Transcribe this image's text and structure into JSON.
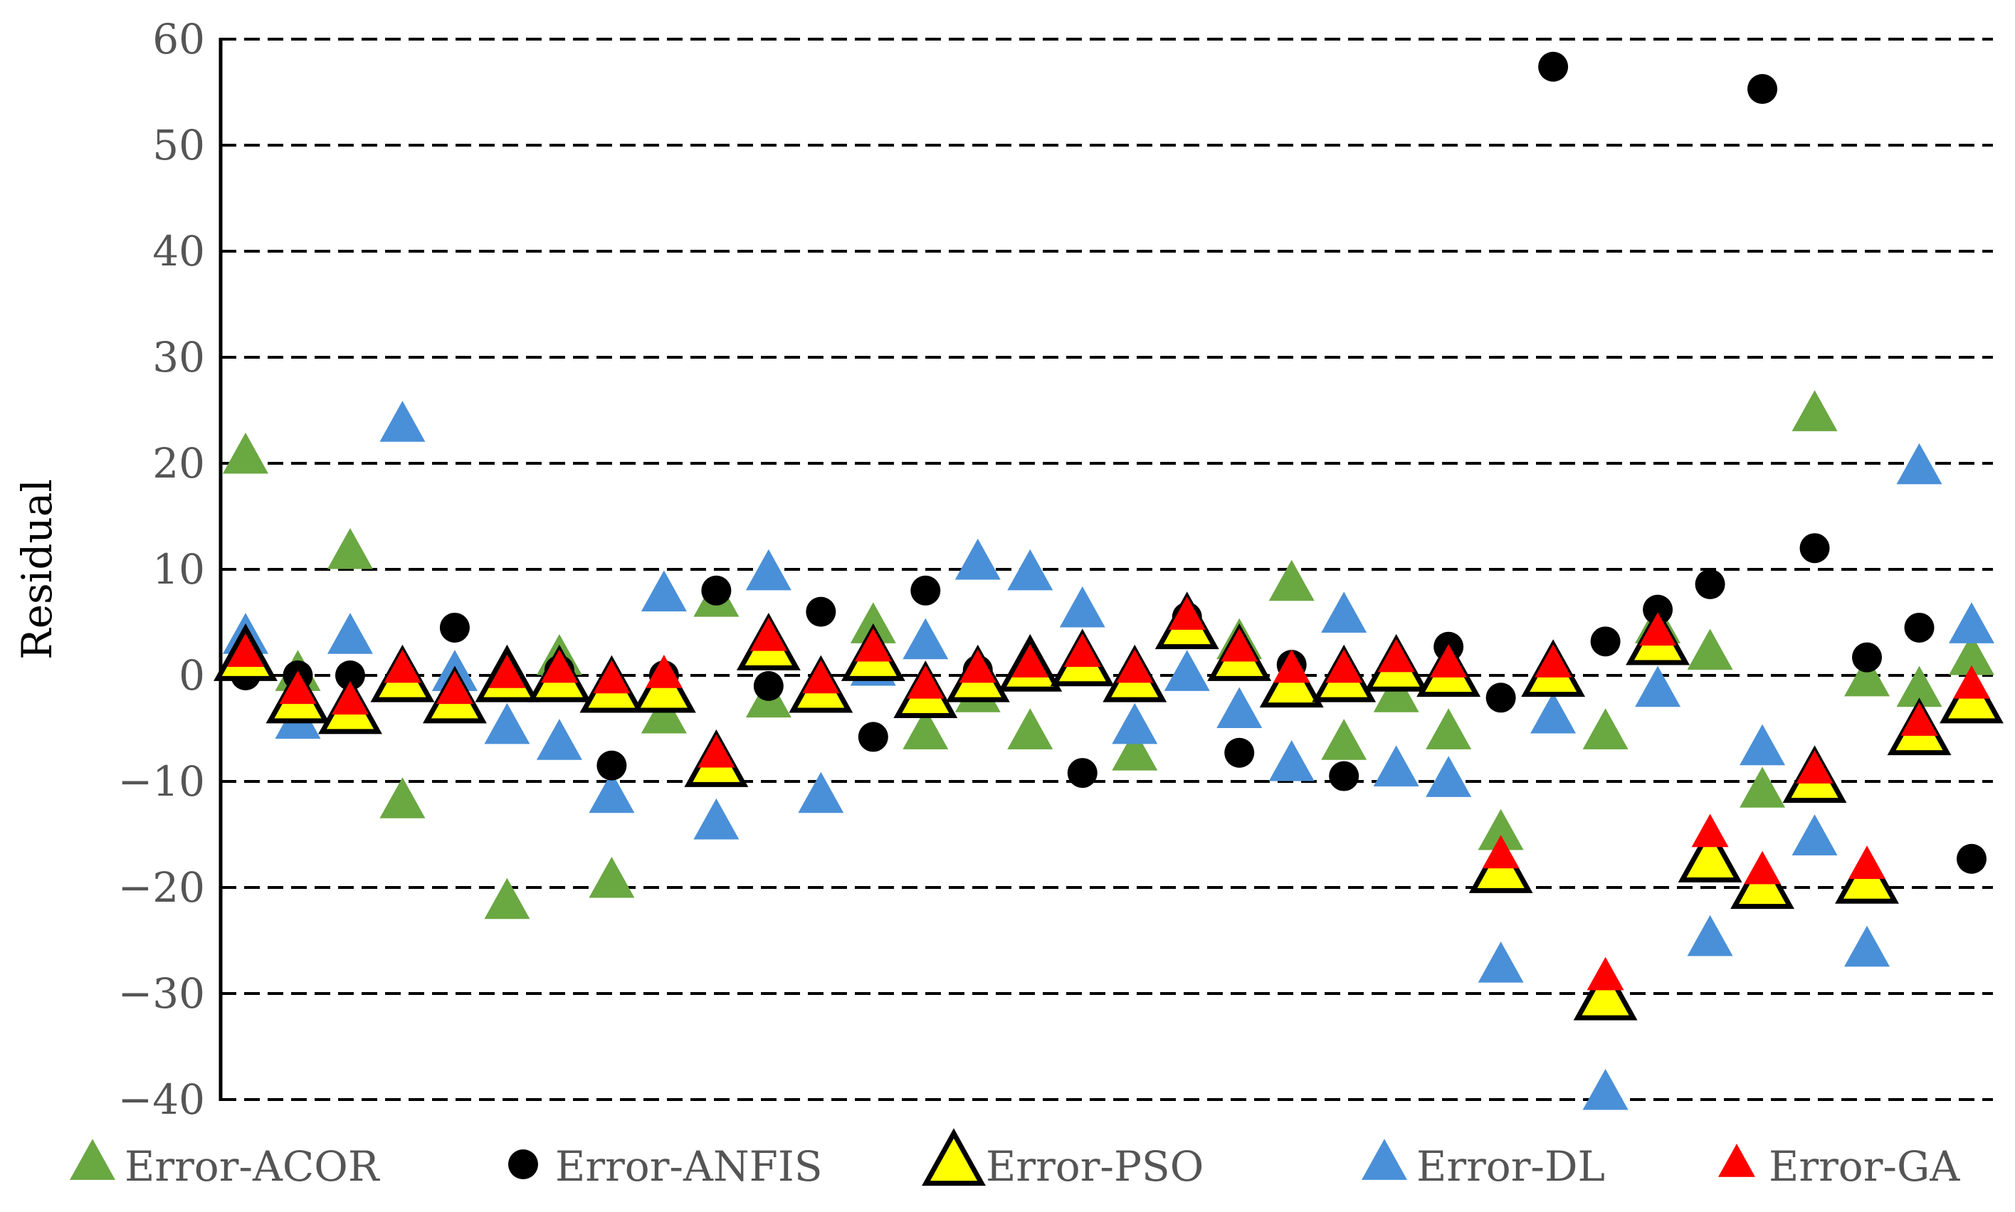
{
  "chart_data": {
    "type": "scatter",
    "title": "",
    "xlabel": "",
    "ylabel": "Residual",
    "ylim": [
      -40,
      60
    ],
    "yticks": [
      60,
      50,
      40,
      30,
      20,
      10,
      0,
      -10,
      -20,
      -30,
      -40
    ],
    "ytick_labels": [
      "60",
      "50",
      "40",
      "30",
      "20",
      "10",
      "0",
      "−10",
      "−20",
      "−30",
      "−40"
    ],
    "grid": "horizontal dashed",
    "legend_position": "bottom",
    "x": [
      1,
      2,
      3,
      4,
      5,
      6,
      7,
      8,
      9,
      10,
      11,
      12,
      13,
      14,
      15,
      16,
      17,
      18,
      19,
      20,
      21,
      22,
      23,
      24,
      25,
      26,
      27,
      28,
      29,
      30,
      31,
      32,
      33,
      34
    ],
    "series": [
      {
        "name": "Error-ACOR",
        "marker": "triangle",
        "color": "#6aa842",
        "values": [
          20.5,
          0,
          11.5,
          -12,
          0,
          -21.5,
          1.5,
          -19.5,
          -4,
          7,
          -2.5,
          -1,
          4.5,
          -5.5,
          -2,
          -5.5,
          1,
          -7.5,
          5,
          3,
          8.5,
          -6.5,
          -2,
          -5.5,
          -15,
          0,
          -5.5,
          4.5,
          2,
          -11,
          24.5,
          -0.5,
          -1.5,
          1.5
        ]
      },
      {
        "name": "Error-ANFIS",
        "marker": "circle",
        "color": "#000000",
        "values": [
          0,
          0,
          0,
          0,
          4.5,
          0,
          0.5,
          -8.5,
          0,
          8,
          -1,
          6,
          -5.8,
          8,
          0.5,
          0,
          -9.2,
          0,
          5.5,
          -7.3,
          1,
          -9.5,
          0,
          2.7,
          -2.1,
          57.4,
          3.2,
          6.2,
          8.6,
          55.3,
          12,
          1.7,
          4.5,
          -17.3
        ]
      },
      {
        "name": "Error-PSO",
        "marker": "triangle",
        "color": "#ffff00",
        "values": [
          1.5,
          -2.5,
          -3.5,
          -0.5,
          -2.5,
          -0.5,
          -0.5,
          -1.5,
          -1.5,
          -8.5,
          2.5,
          -1.5,
          1.5,
          -2,
          -0.5,
          0.5,
          1,
          -0.5,
          4.5,
          1.5,
          -1,
          -0.5,
          0.5,
          0,
          -18.5,
          0,
          -30.5,
          3,
          -17.5,
          -20,
          -10,
          -19.5,
          -5.5,
          -2.5
        ]
      },
      {
        "name": "Error-DL",
        "marker": "triangle",
        "color": "#4a90d8",
        "values": [
          3.5,
          -4.5,
          3.5,
          23.5,
          0,
          -5,
          -6.5,
          -11.5,
          7.5,
          -14,
          9.5,
          -11.5,
          0.5,
          3,
          10.5,
          9.5,
          6,
          -5,
          0,
          -3.5,
          -8.5,
          5.5,
          -9,
          -10,
          -27.5,
          -4,
          -39.5,
          -1.5,
          -25,
          -7,
          -15.5,
          -26,
          19.5,
          4.5
        ]
      },
      {
        "name": "Error-GA",
        "marker": "triangle",
        "color": "#ff0000",
        "values": [
          2,
          -1.5,
          -2.5,
          0.5,
          -1.5,
          0,
          0.5,
          -0.5,
          0,
          -7.5,
          3.5,
          -0.5,
          2.5,
          -1,
          0.5,
          1,
          2,
          0.5,
          5.5,
          2.5,
          0.5,
          0.5,
          1.5,
          1,
          -17,
          1,
          -28.5,
          4,
          -15,
          -18.5,
          -9,
          -18,
          -4.5,
          -1
        ]
      }
    ]
  }
}
